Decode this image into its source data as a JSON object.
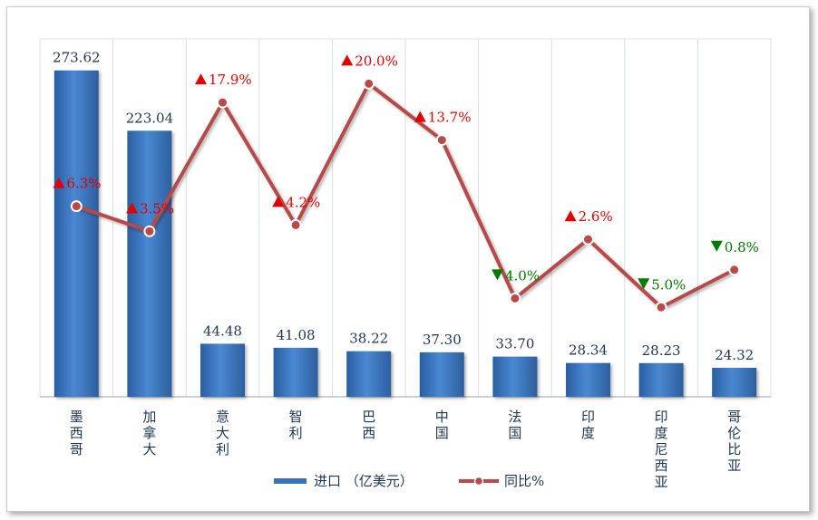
{
  "chart_data": {
    "type": "bar+line",
    "categories": [
      "墨西哥",
      "加拿大",
      "意大利",
      "智利",
      "巴西",
      "中国",
      "法国",
      "印度",
      "印度尼西亚",
      "哥伦比亚"
    ],
    "series": [
      {
        "name": "进口 (亿美元)",
        "type": "bar",
        "values": [
          273.62,
          223.04,
          44.48,
          41.08,
          38.22,
          37.3,
          33.7,
          28.34,
          28.23,
          24.32
        ],
        "labels": [
          "273.62",
          "223.04",
          "44.48",
          "41.08",
          "38.22",
          "37.30",
          "33.70",
          "28.34",
          "28.23",
          "24.32"
        ],
        "color": "#3a72b8"
      },
      {
        "name": "同比%",
        "type": "line",
        "values": [
          6.3,
          3.5,
          17.9,
          4.2,
          20.0,
          13.7,
          -4.0,
          2.6,
          -5.0,
          -0.8
        ],
        "labels": [
          "6.3%",
          "3.5%",
          "17.9%",
          "4.2%",
          "20.0%",
          "13.7%",
          "4.0%",
          "2.6%",
          "5.0%",
          "0.8%"
        ],
        "color": "#b84a4a"
      }
    ],
    "legend_labels": {
      "bar": "进口 （亿美元）",
      "line": "同比%"
    },
    "up_color": "#e00000",
    "down_color": "#007a00",
    "bar_ylim": [
      0,
      300
    ],
    "line_ylim": [
      -15,
      25
    ],
    "grid": "vertical",
    "legend_position": "bottom"
  }
}
